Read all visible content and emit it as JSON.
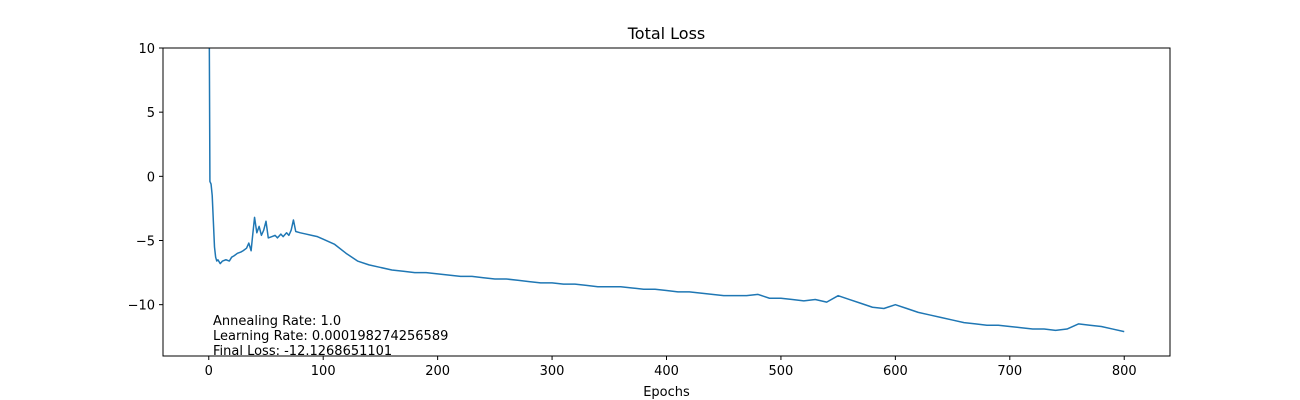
{
  "chart_data": {
    "type": "line",
    "title": "Total Loss",
    "xlabel": "Epochs",
    "ylabel": "",
    "xlim": [
      -40,
      840
    ],
    "ylim": [
      -14,
      10
    ],
    "xticks": [
      0,
      100,
      200,
      300,
      400,
      500,
      600,
      700,
      800
    ],
    "yticks": [
      10,
      5,
      0,
      -5,
      -10
    ],
    "xtick_labels": [
      "0",
      "100",
      "200",
      "300",
      "400",
      "500",
      "600",
      "700",
      "800"
    ],
    "ytick_labels": [
      "10",
      "5",
      "0",
      "−5",
      "−10"
    ],
    "grid": false,
    "series": [
      {
        "color": "#1f77b4",
        "x": [
          0,
          0.5,
          1,
          2,
          3,
          4,
          5,
          6,
          7,
          8,
          10,
          12,
          15,
          18,
          20,
          22,
          25,
          28,
          30,
          33,
          35,
          37,
          38,
          40,
          42,
          44,
          46,
          48,
          50,
          52,
          55,
          58,
          60,
          63,
          65,
          68,
          70,
          72,
          74,
          76,
          80,
          85,
          90,
          95,
          100,
          110,
          120,
          130,
          140,
          150,
          160,
          170,
          180,
          190,
          200,
          210,
          220,
          230,
          240,
          250,
          260,
          270,
          280,
          290,
          300,
          310,
          320,
          330,
          340,
          350,
          360,
          370,
          380,
          390,
          400,
          410,
          420,
          430,
          440,
          450,
          460,
          470,
          480,
          490,
          500,
          510,
          520,
          530,
          540,
          550,
          560,
          570,
          580,
          590,
          600,
          610,
          620,
          630,
          640,
          650,
          660,
          670,
          680,
          690,
          700,
          710,
          720,
          730,
          740,
          750,
          760,
          770,
          780,
          790,
          800
        ],
        "y": [
          10,
          10,
          -0.4,
          -0.6,
          -1.5,
          -3.5,
          -5.5,
          -6.3,
          -6.6,
          -6.5,
          -6.8,
          -6.6,
          -6.5,
          -6.6,
          -6.3,
          -6.2,
          -6.0,
          -5.9,
          -5.8,
          -5.6,
          -5.2,
          -5.8,
          -4.9,
          -3.2,
          -4.4,
          -3.9,
          -4.6,
          -4.2,
          -3.5,
          -4.8,
          -4.7,
          -4.6,
          -4.8,
          -4.5,
          -4.7,
          -4.4,
          -4.6,
          -4.2,
          -3.4,
          -4.3,
          -4.4,
          -4.5,
          -4.6,
          -4.7,
          -4.9,
          -5.3,
          -6.0,
          -6.6,
          -6.9,
          -7.1,
          -7.3,
          -7.4,
          -7.5,
          -7.5,
          -7.6,
          -7.7,
          -7.8,
          -7.8,
          -7.9,
          -8.0,
          -8.0,
          -8.1,
          -8.2,
          -8.3,
          -8.3,
          -8.4,
          -8.4,
          -8.5,
          -8.6,
          -8.6,
          -8.6,
          -8.7,
          -8.8,
          -8.8,
          -8.9,
          -9.0,
          -9.0,
          -9.1,
          -9.2,
          -9.3,
          -9.3,
          -9.3,
          -9.2,
          -9.5,
          -9.5,
          -9.6,
          -9.7,
          -9.6,
          -9.8,
          -9.3,
          -9.6,
          -9.9,
          -10.2,
          -10.3,
          -10.0,
          -10.3,
          -10.6,
          -10.8,
          -11.0,
          -11.2,
          -11.4,
          -11.5,
          -11.6,
          -11.6,
          -11.7,
          -11.8,
          -11.9,
          -11.9,
          -12.0,
          -11.9,
          -11.5,
          -11.6,
          -11.7,
          -11.9,
          -12.1
        ]
      }
    ],
    "annotations": [
      "Annealing Rate: 1.0",
      "Learning Rate: 0.000198274256589",
      "Final Loss: -12.1268651101"
    ]
  }
}
